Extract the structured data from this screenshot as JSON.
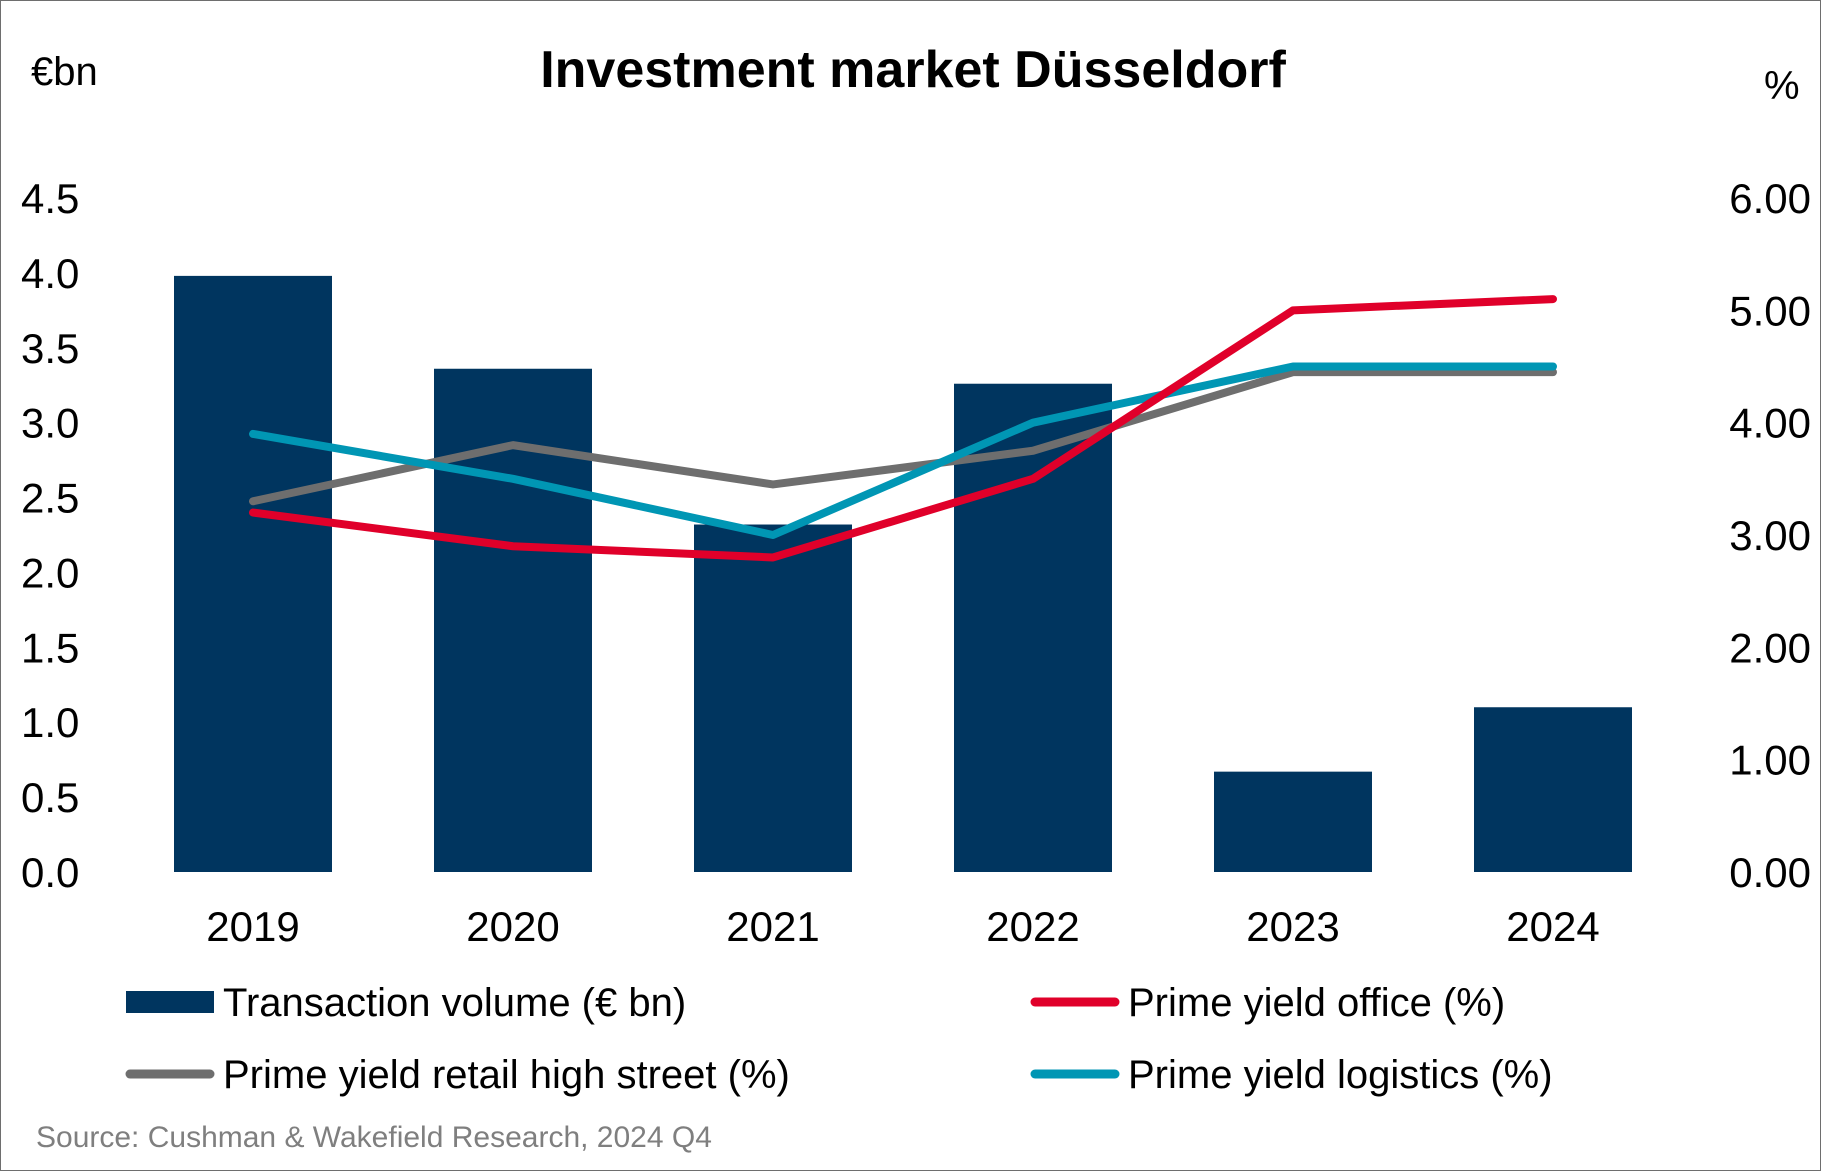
{
  "chart_data": {
    "type": "bar",
    "title": "Investment market Düsseldorf",
    "y_left_unit": "€bn",
    "y_right_unit": "%",
    "categories": [
      "2019",
      "2020",
      "2021",
      "2022",
      "2023",
      "2024"
    ],
    "y_left_ticks": [
      "0.0",
      "0.5",
      "1.0",
      "1.5",
      "2.0",
      "2.5",
      "3.0",
      "3.5",
      "4.0",
      "4.5"
    ],
    "y_right_ticks": [
      "0.00",
      "1.00",
      "2.00",
      "3.00",
      "4.00",
      "5.00",
      "6.00"
    ],
    "y_left_range": [
      0,
      4.5
    ],
    "y_right_range": [
      0,
      6
    ],
    "bars": {
      "name": "Transaction volume (€ bn)",
      "color": "#00355f",
      "values": [
        3.98,
        3.36,
        2.32,
        3.26,
        0.67,
        1.1
      ]
    },
    "lines": [
      {
        "name": "Prime yield office (%)",
        "color": "#e0002a",
        "values": [
          3.2,
          2.9,
          2.8,
          3.5,
          5.0,
          5.1
        ]
      },
      {
        "name": "Prime yield retail high street (%)",
        "color": "#6e6e6e",
        "values": [
          3.3,
          3.8,
          3.45,
          3.75,
          4.45,
          4.45
        ]
      },
      {
        "name": "Prime yield logistics (%)",
        "color": "#0096b4",
        "values": [
          3.9,
          3.5,
          3.0,
          4.0,
          4.5,
          4.5
        ]
      }
    ],
    "grid": false,
    "legend_position": "bottom"
  },
  "source": "Source: Cushman & Wakefield Research, 2024 Q4"
}
